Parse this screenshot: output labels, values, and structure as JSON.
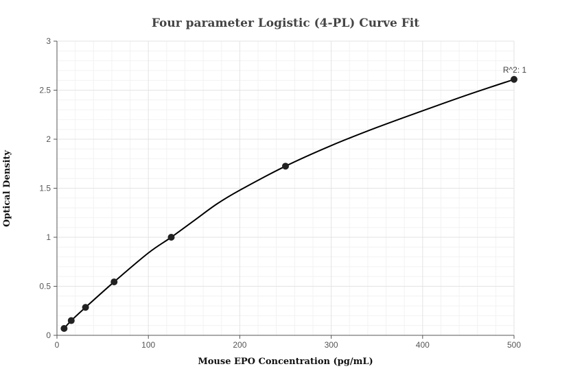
{
  "chart_data": {
    "type": "scatter",
    "title": "Four parameter Logistic (4-PL) Curve Fit",
    "xlabel": "Mouse EPO Concentration (pg/mL)",
    "ylabel": "Optical Density",
    "xlim": [
      0,
      500
    ],
    "ylim": [
      0,
      3
    ],
    "x_ticks": [
      0,
      100,
      200,
      300,
      400,
      500
    ],
    "y_ticks": [
      0,
      0.5,
      1,
      1.5,
      2,
      2.5,
      3
    ],
    "x_tick_labels": [
      "0",
      "100",
      "200",
      "300",
      "400",
      "500"
    ],
    "y_tick_labels": [
      "0",
      "0.5",
      "1",
      "1.5",
      "2",
      "2.5",
      "3"
    ],
    "grid": true,
    "series": [
      {
        "kind": "points",
        "color": "#222222",
        "x": [
          7.8,
          15.6,
          31.25,
          62.5,
          125,
          250,
          500
        ],
        "y": [
          0.07,
          0.15,
          0.285,
          0.545,
          1.0,
          1.725,
          2.61
        ]
      },
      {
        "kind": "fitted-curve",
        "color": "#000000",
        "x": [
          7.8,
          15.6,
          31.25,
          62.5,
          100,
          125,
          150,
          175,
          200,
          250,
          300,
          350,
          400,
          450,
          500
        ],
        "y": [
          0.07,
          0.15,
          0.285,
          0.545,
          0.84,
          1.0,
          1.17,
          1.34,
          1.48,
          1.725,
          1.935,
          2.12,
          2.29,
          2.455,
          2.61
        ]
      }
    ],
    "annotations": [
      {
        "text": "R^2: 1",
        "x": 500,
        "y": 2.61
      }
    ]
  }
}
